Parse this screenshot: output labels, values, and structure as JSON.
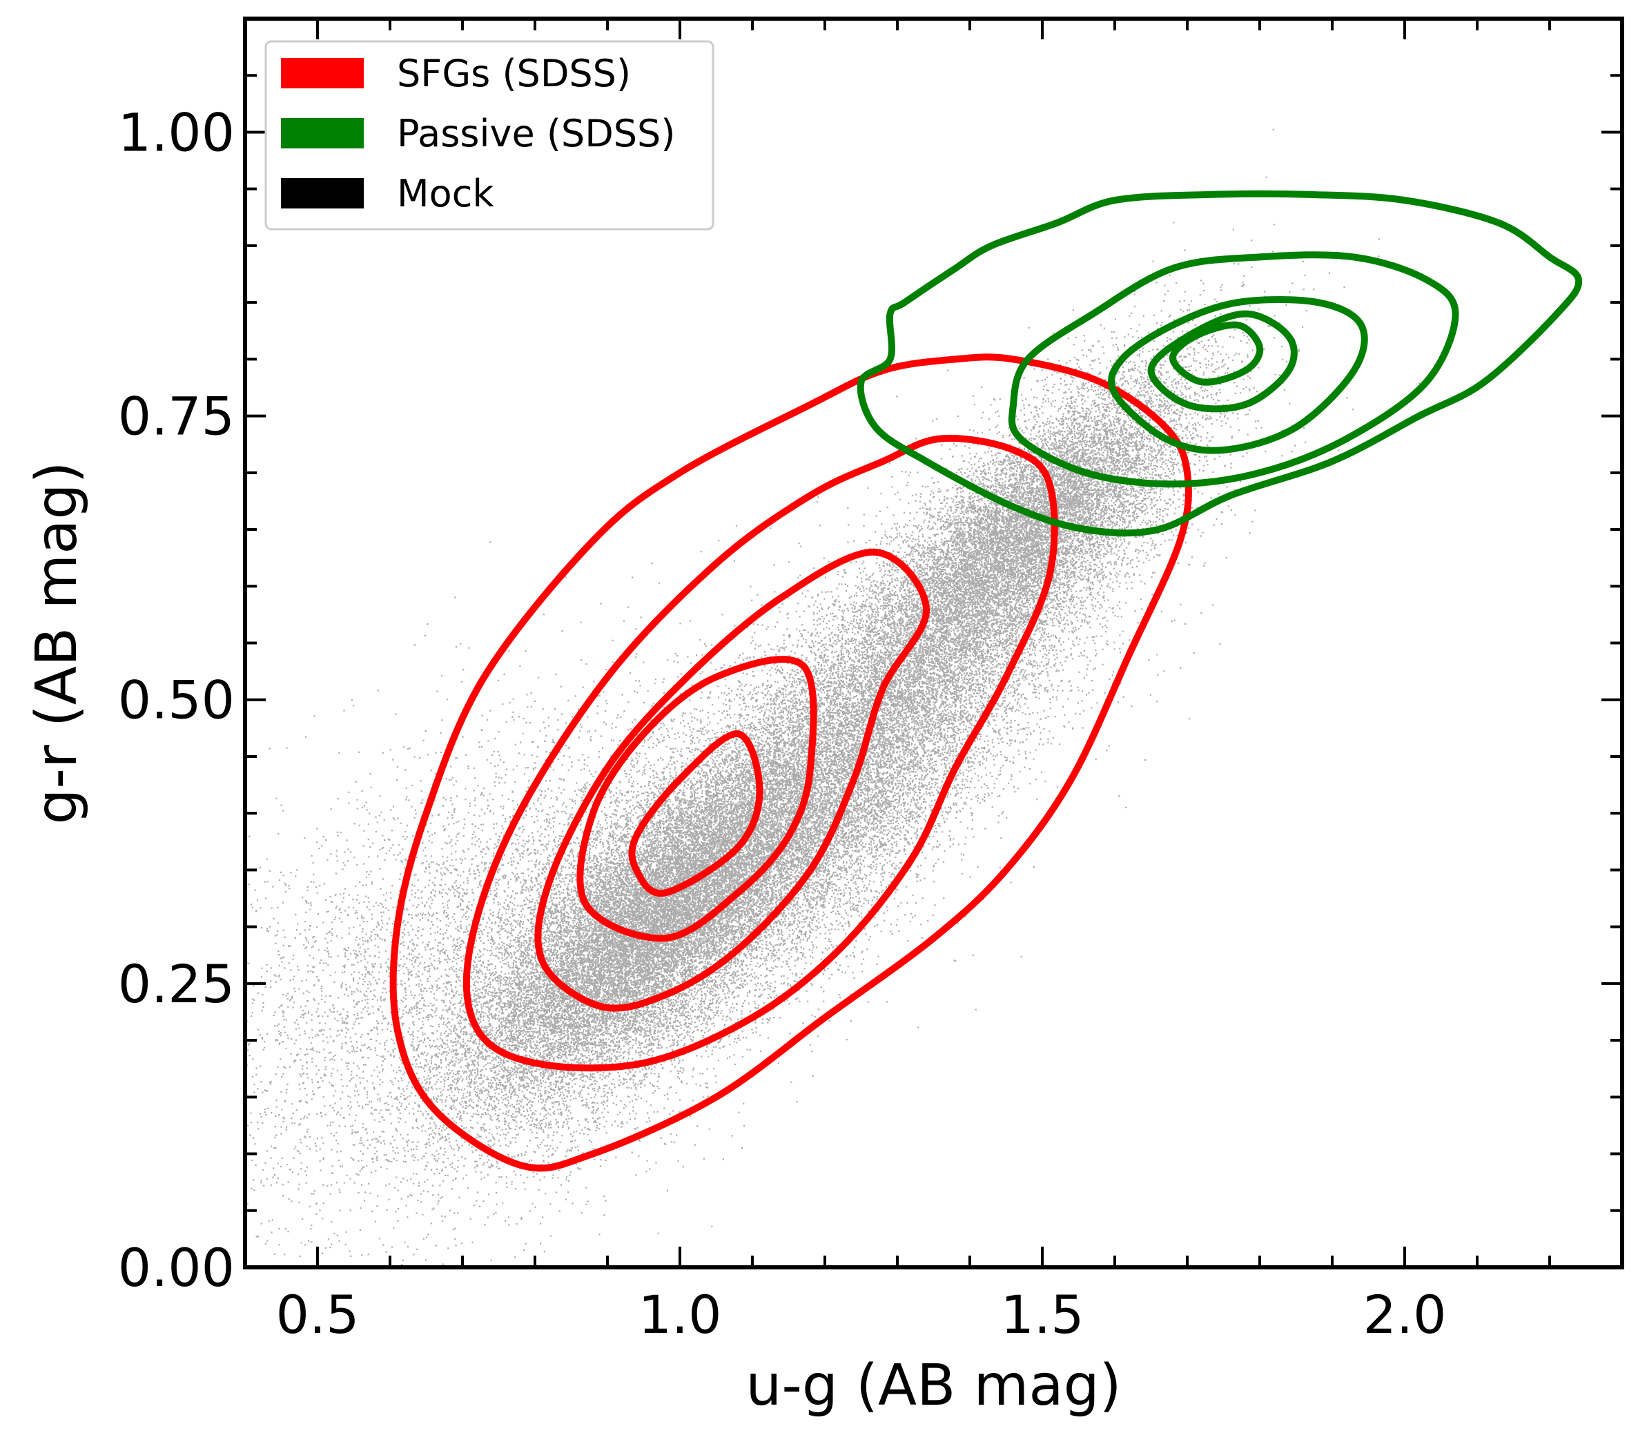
{
  "chart_data": {
    "type": "scatter",
    "title": "",
    "xlabel": "u-g (AB mag)",
    "ylabel": "g-r (AB mag)",
    "xlim": [
      0.4,
      2.3
    ],
    "ylim": [
      0.0,
      1.1
    ],
    "x_ticks": [
      {
        "value": 0.5,
        "label": "0.5"
      },
      {
        "value": 1.0,
        "label": "1.0"
      },
      {
        "value": 1.5,
        "label": "1.5"
      },
      {
        "value": 2.0,
        "label": "2.0"
      }
    ],
    "y_ticks": [
      {
        "value": 0.0,
        "label": "0.00"
      },
      {
        "value": 0.25,
        "label": "0.25"
      },
      {
        "value": 0.5,
        "label": "0.50"
      },
      {
        "value": 0.75,
        "label": "0.75"
      },
      {
        "value": 1.0,
        "label": "1.00"
      }
    ],
    "x_minor_step": 0.1,
    "y_minor_step": 0.05,
    "grid": false,
    "legend_position": "top-left",
    "legend": [
      {
        "label": "SFGs (SDSS)",
        "color": "#ff0000"
      },
      {
        "label": "Passive (SDSS)",
        "color": "#008000"
      },
      {
        "label": "Mock",
        "color": "#000000"
      }
    ],
    "series": [
      {
        "name": "Mock",
        "kind": "scatter",
        "color": "#000000",
        "point_count": 60000,
        "density_components": [
          {
            "weight": 0.28,
            "mean": [
              0.95,
              0.3
            ],
            "sd_major": 0.14,
            "sd_minor": 0.045,
            "slope": 0.55
          },
          {
            "weight": 0.38,
            "mean": [
              1.2,
              0.43
            ],
            "sd_major": 0.22,
            "sd_minor": 0.06,
            "slope": 0.62
          },
          {
            "weight": 0.22,
            "mean": [
              1.48,
              0.65
            ],
            "sd_major": 0.13,
            "sd_minor": 0.04,
            "slope": 0.55
          },
          {
            "weight": 0.12,
            "mean": [
              0.75,
              0.28
            ],
            "sd_major": 0.22,
            "sd_minor": 0.09,
            "slope": 0.35
          }
        ]
      },
      {
        "name": "SFGs (SDSS)",
        "kind": "contour",
        "color": "#ff0000",
        "levels": [
          [
            [
              0.78,
              0.09
            ],
            [
              0.88,
              0.1
            ],
            [
              1.05,
              0.15
            ],
            [
              1.2,
              0.22
            ],
            [
              1.35,
              0.29
            ],
            [
              1.45,
              0.35
            ],
            [
              1.54,
              0.43
            ],
            [
              1.62,
              0.54
            ],
            [
              1.69,
              0.64
            ],
            [
              1.7,
              0.7
            ],
            [
              1.67,
              0.74
            ],
            [
              1.58,
              0.78
            ],
            [
              1.46,
              0.8
            ],
            [
              1.38,
              0.8
            ],
            [
              1.28,
              0.79
            ],
            [
              1.18,
              0.76
            ],
            [
              1.0,
              0.7
            ],
            [
              0.88,
              0.64
            ],
            [
              0.73,
              0.52
            ],
            [
              0.65,
              0.4
            ],
            [
              0.61,
              0.3
            ],
            [
              0.61,
              0.21
            ],
            [
              0.66,
              0.14
            ]
          ],
          [
            [
              0.8,
              0.18
            ],
            [
              0.95,
              0.18
            ],
            [
              1.1,
              0.22
            ],
            [
              1.22,
              0.28
            ],
            [
              1.32,
              0.36
            ],
            [
              1.38,
              0.44
            ],
            [
              1.45,
              0.52
            ],
            [
              1.51,
              0.61
            ],
            [
              1.51,
              0.69
            ],
            [
              1.46,
              0.72
            ],
            [
              1.36,
              0.73
            ],
            [
              1.28,
              0.71
            ],
            [
              1.18,
              0.68
            ],
            [
              1.05,
              0.62
            ],
            [
              0.9,
              0.52
            ],
            [
              0.77,
              0.39
            ],
            [
              0.71,
              0.28
            ],
            [
              0.72,
              0.21
            ]
          ],
          [
            [
              0.89,
              0.23
            ],
            [
              0.98,
              0.24
            ],
            [
              1.08,
              0.28
            ],
            [
              1.18,
              0.35
            ],
            [
              1.24,
              0.43
            ],
            [
              1.28,
              0.51
            ],
            [
              1.34,
              0.58
            ],
            [
              1.27,
              0.63
            ],
            [
              1.14,
              0.59
            ],
            [
              1.01,
              0.52
            ],
            [
              0.9,
              0.44
            ],
            [
              0.82,
              0.34
            ],
            [
              0.81,
              0.27
            ]
          ],
          [
            [
              0.98,
              0.29
            ],
            [
              1.08,
              0.33
            ],
            [
              1.15,
              0.38
            ],
            [
              1.18,
              0.44
            ],
            [
              1.17,
              0.53
            ],
            [
              1.05,
              0.52
            ],
            [
              0.95,
              0.47
            ],
            [
              0.88,
              0.4
            ],
            [
              0.87,
              0.32
            ]
          ],
          [
            [
              0.98,
              0.33
            ],
            [
              1.08,
              0.37
            ],
            [
              1.11,
              0.42
            ],
            [
              1.08,
              0.47
            ],
            [
              1.0,
              0.43
            ],
            [
              0.94,
              0.38
            ],
            [
              0.94,
              0.35
            ]
          ]
        ]
      },
      {
        "name": "Passive (SDSS)",
        "kind": "contour",
        "color": "#008000",
        "levels": [
          [
            [
              1.27,
              0.74
            ],
            [
              1.34,
              0.71
            ],
            [
              1.46,
              0.67
            ],
            [
              1.56,
              0.65
            ],
            [
              1.66,
              0.65
            ],
            [
              1.76,
              0.68
            ],
            [
              1.9,
              0.71
            ],
            [
              2.02,
              0.75
            ],
            [
              2.11,
              0.78
            ],
            [
              2.21,
              0.84
            ],
            [
              2.24,
              0.87
            ],
            [
              2.2,
              0.89
            ],
            [
              2.13,
              0.92
            ],
            [
              2.0,
              0.94
            ],
            [
              1.87,
              0.945
            ],
            [
              1.73,
              0.945
            ],
            [
              1.6,
              0.94
            ],
            [
              1.52,
              0.92
            ],
            [
              1.43,
              0.9
            ],
            [
              1.38,
              0.88
            ],
            [
              1.31,
              0.85
            ],
            [
              1.29,
              0.84
            ],
            [
              1.29,
              0.8
            ],
            [
              1.25,
              0.78
            ]
          ],
          [
            [
              1.47,
              0.73
            ],
            [
              1.56,
              0.7
            ],
            [
              1.68,
              0.69
            ],
            [
              1.8,
              0.7
            ],
            [
              1.92,
              0.73
            ],
            [
              2.03,
              0.78
            ],
            [
              2.07,
              0.84
            ],
            [
              2.03,
              0.87
            ],
            [
              1.93,
              0.89
            ],
            [
              1.8,
              0.89
            ],
            [
              1.68,
              0.88
            ],
            [
              1.57,
              0.84
            ],
            [
              1.48,
              0.8
            ],
            [
              1.46,
              0.76
            ]
          ],
          [
            [
              1.6,
              0.77
            ],
            [
              1.67,
              0.73
            ],
            [
              1.75,
              0.72
            ],
            [
              1.85,
              0.74
            ],
            [
              1.93,
              0.79
            ],
            [
              1.94,
              0.83
            ],
            [
              1.88,
              0.85
            ],
            [
              1.77,
              0.85
            ],
            [
              1.68,
              0.83
            ],
            [
              1.61,
              0.8
            ]
          ],
          [
            [
              1.65,
              0.79
            ],
            [
              1.7,
              0.76
            ],
            [
              1.78,
              0.76
            ],
            [
              1.84,
              0.79
            ],
            [
              1.84,
              0.82
            ],
            [
              1.78,
              0.84
            ],
            [
              1.7,
              0.82
            ]
          ],
          [
            [
              1.68,
              0.8
            ],
            [
              1.72,
              0.78
            ],
            [
              1.78,
              0.79
            ],
            [
              1.8,
              0.81
            ],
            [
              1.77,
              0.83
            ],
            [
              1.71,
              0.82
            ]
          ]
        ]
      }
    ]
  }
}
